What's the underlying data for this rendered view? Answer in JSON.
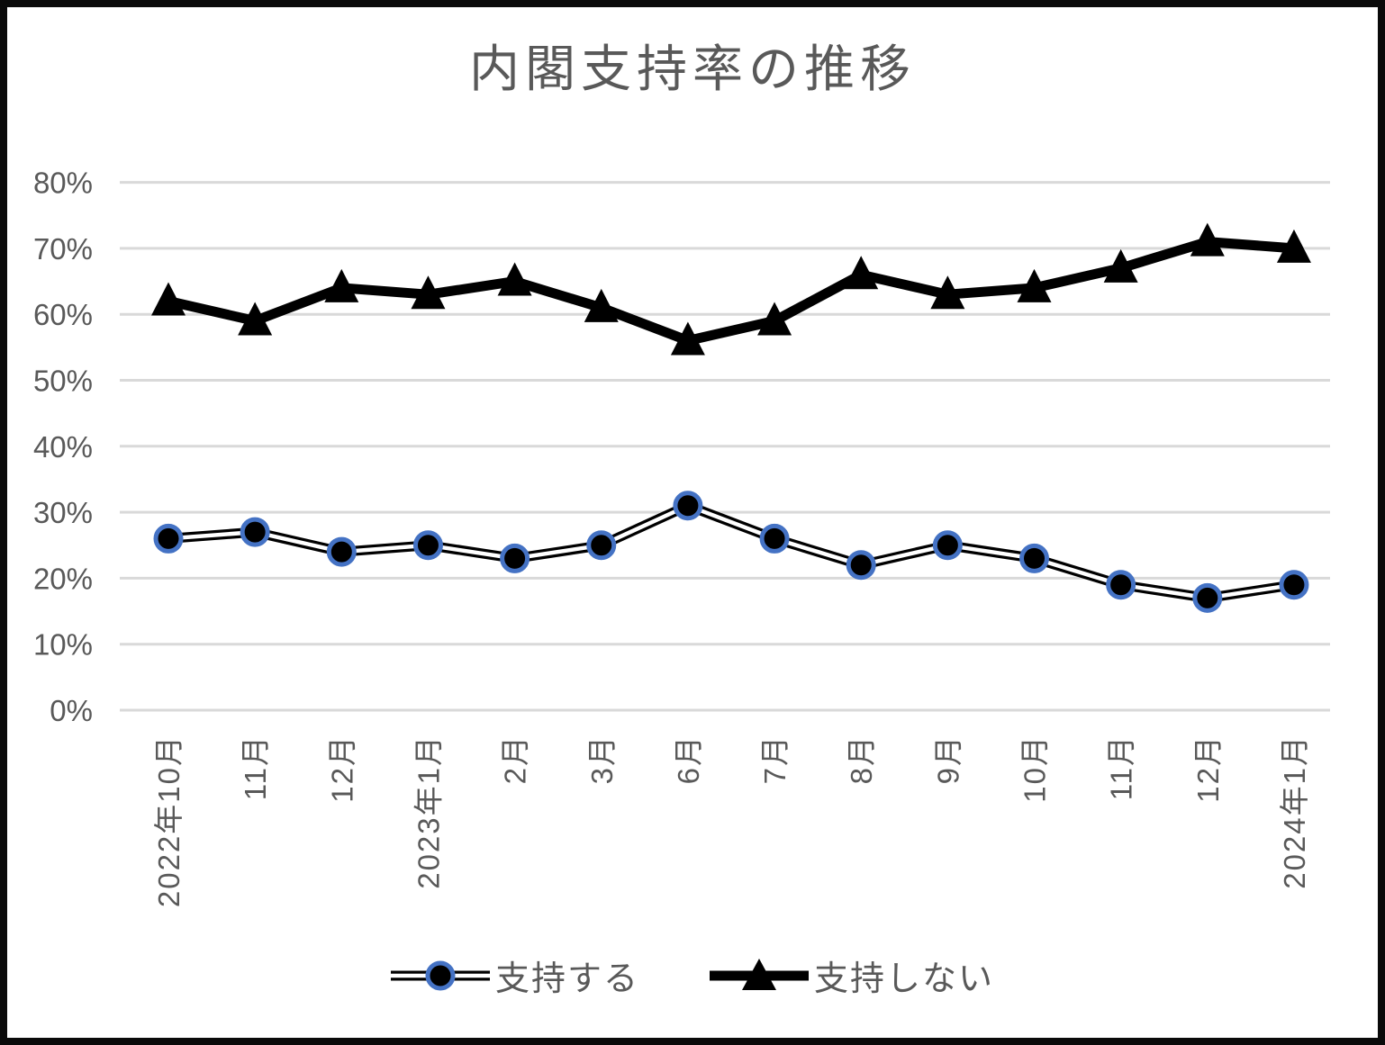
{
  "title": "内閣支持率の推移",
  "chart_data": {
    "type": "line",
    "title": "内閣支持率の推移",
    "categories": [
      "2022年10月",
      "11月",
      "12月",
      "2023年1月",
      "2月",
      "3月",
      "6月",
      "7月",
      "8月",
      "9月",
      "10月",
      "11月",
      "12月",
      "2024年1月"
    ],
    "series": [
      {
        "name": "支持する",
        "marker": "circle",
        "line_style": "double",
        "line_color": "#000000",
        "marker_fill": "#000000",
        "marker_ring_color": "#4472C4",
        "values": [
          26,
          27,
          24,
          25,
          23,
          25,
          31,
          26,
          22,
          25,
          23,
          19,
          17,
          19
        ]
      },
      {
        "name": "支持しない",
        "marker": "triangle",
        "line_style": "solid",
        "line_color": "#000000",
        "marker_fill": "#000000",
        "values": [
          62,
          59,
          64,
          63,
          65,
          61,
          56,
          59,
          66,
          63,
          64,
          67,
          71,
          70
        ]
      }
    ],
    "ylim": [
      0,
      80
    ],
    "ytick_labels": [
      "0%",
      "10%",
      "20%",
      "30%",
      "40%",
      "50%",
      "60%",
      "70%",
      "80%"
    ],
    "grid": true,
    "grid_color": "#D9D9D9",
    "axis_text_color": "#595959",
    "legend_position": "bottom"
  }
}
